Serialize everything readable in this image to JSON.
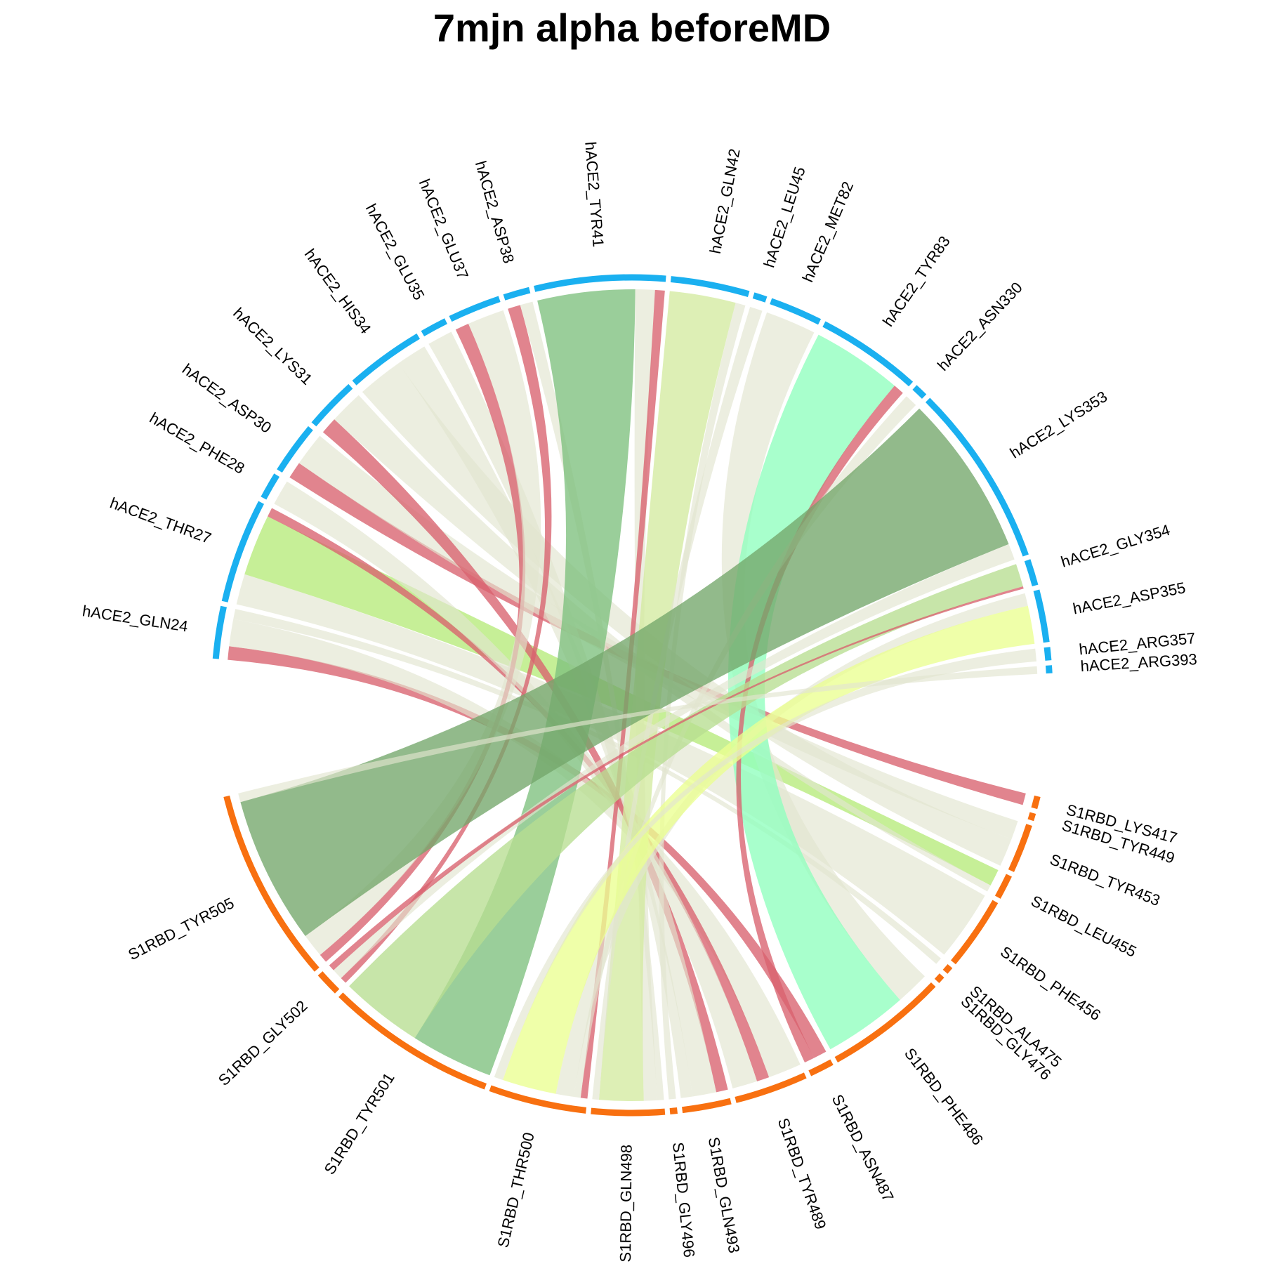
{
  "title": "7mjn alpha beforeMD",
  "colors": {
    "group_hACE2": "#1AB0F0",
    "group_S1RBD": "#F87010",
    "ribbon_default": "#E2E5D0",
    "ribbon_red": "#D9626E"
  },
  "sectors": [
    {
      "name": "hACE2_GLN24",
      "group": "hACE2",
      "value": 2
    },
    {
      "name": "hACE2_THR27",
      "group": "hACE2",
      "value": 4
    },
    {
      "name": "hACE2_PHE28",
      "group": "hACE2",
      "value": 1
    },
    {
      "name": "hACE2_ASP30",
      "group": "hACE2",
      "value": 2
    },
    {
      "name": "hACE2_LYS31",
      "group": "hACE2",
      "value": 2
    },
    {
      "name": "hACE2_HIS34",
      "group": "hACE2",
      "value": 3
    },
    {
      "name": "hACE2_GLU35",
      "group": "hACE2",
      "value": 1
    },
    {
      "name": "hACE2_GLU37",
      "group": "hACE2",
      "value": 2
    },
    {
      "name": "hACE2_ASP38",
      "group": "hACE2",
      "value": 1
    },
    {
      "name": "hACE2_TYR41",
      "group": "hACE2",
      "value": 5
    },
    {
      "name": "hACE2_GLN42",
      "group": "hACE2",
      "value": 3
    },
    {
      "name": "hACE2_LEU45",
      "group": "hACE2",
      "value": 0.5
    },
    {
      "name": "hACE2_MET82",
      "group": "hACE2",
      "value": 2
    },
    {
      "name": "hACE2_TYR83",
      "group": "hACE2",
      "value": 4
    },
    {
      "name": "hACE2_ASN330",
      "group": "hACE2",
      "value": 0.5
    },
    {
      "name": "hACE2_LYS353",
      "group": "hACE2",
      "value": 7
    },
    {
      "name": "hACE2_GLY354",
      "group": "hACE2",
      "value": 1
    },
    {
      "name": "hACE2_ASP355",
      "group": "hACE2",
      "value": 2
    },
    {
      "name": "hACE2_ARG357",
      "group": "hACE2",
      "value": 0.5
    },
    {
      "name": "hACE2_ARG393",
      "group": "hACE2",
      "value": 0.3
    },
    {
      "name": "S1RBD_LYS417",
      "group": "S1RBD",
      "value": 0.5
    },
    {
      "name": "S1RBD_TYR449",
      "group": "S1RBD",
      "value": 0.3
    },
    {
      "name": "S1RBD_TYR453",
      "group": "S1RBD",
      "value": 2
    },
    {
      "name": "S1RBD_LEU455",
      "group": "S1RBD",
      "value": 1
    },
    {
      "name": "S1RBD_PHE456",
      "group": "S1RBD",
      "value": 3
    },
    {
      "name": "S1RBD_ALA475",
      "group": "S1RBD",
      "value": 0.3
    },
    {
      "name": "S1RBD_GLY476",
      "group": "S1RBD",
      "value": 0.3
    },
    {
      "name": "S1RBD_PHE486",
      "group": "S1RBD",
      "value": 5
    },
    {
      "name": "S1RBD_ASN487",
      "group": "S1RBD",
      "value": 1
    },
    {
      "name": "S1RBD_TYR489",
      "group": "S1RBD",
      "value": 3
    },
    {
      "name": "S1RBD_GLN493",
      "group": "S1RBD",
      "value": 2
    },
    {
      "name": "S1RBD_GLY496",
      "group": "S1RBD",
      "value": 0.3
    },
    {
      "name": "S1RBD_GLN498",
      "group": "S1RBD",
      "value": 3
    },
    {
      "name": "S1RBD_THR500",
      "group": "S1RBD",
      "value": 4
    },
    {
      "name": "S1RBD_TYR501",
      "group": "S1RBD",
      "value": 7
    },
    {
      "name": "S1RBD_GLY502",
      "group": "S1RBD",
      "value": 1
    },
    {
      "name": "S1RBD_TYR505",
      "group": "S1RBD",
      "value": 8
    }
  ],
  "links": [
    {
      "from": "hACE2_GLN24",
      "to": "S1RBD_ASN487",
      "value": 0.4,
      "color": "#D9626E"
    },
    {
      "from": "hACE2_GLN24",
      "to": "S1RBD_TYR489",
      "value": 0.8,
      "color": "#E2E5D0"
    },
    {
      "from": "hACE2_GLN24",
      "to": "S1RBD_ALA475",
      "value": 0.3,
      "color": "#E2E5D0"
    },
    {
      "from": "hACE2_THR27",
      "to": "S1RBD_PHE456",
      "value": 1.0,
      "color": "#E2E5D0"
    },
    {
      "from": "hACE2_THR27",
      "to": "S1RBD_LEU455",
      "value": 2.0,
      "color": "#B6EB7A"
    },
    {
      "from": "hACE2_THR27",
      "to": "S1RBD_TYR489",
      "value": 0.3,
      "color": "#D9626E"
    },
    {
      "from": "hACE2_PHE28",
      "to": "S1RBD_TYR489",
      "value": 0.6,
      "color": "#E2E5D0"
    },
    {
      "from": "hACE2_ASP30",
      "to": "S1RBD_LYS417",
      "value": 0.4,
      "color": "#D9626E"
    },
    {
      "from": "hACE2_ASP30",
      "to": "S1RBD_TYR453",
      "value": 0.8,
      "color": "#E2E5D0"
    },
    {
      "from": "hACE2_LYS31",
      "to": "S1RBD_GLN493",
      "value": 0.4,
      "color": "#D9626E"
    },
    {
      "from": "hACE2_LYS31",
      "to": "S1RBD_LEU455",
      "value": 0.8,
      "color": "#E2E5D0"
    },
    {
      "from": "hACE2_HIS34",
      "to": "S1RBD_TYR453",
      "value": 1.2,
      "color": "#E2E5D0"
    },
    {
      "from": "hACE2_HIS34",
      "to": "S1RBD_GLN493",
      "value": 0.8,
      "color": "#E2E5D0"
    },
    {
      "from": "hACE2_GLU35",
      "to": "S1RBD_GLN493",
      "value": 0.4,
      "color": "#E2E5D0"
    },
    {
      "from": "hACE2_GLU37",
      "to": "S1RBD_TYR505",
      "value": 0.3,
      "color": "#D9626E"
    },
    {
      "from": "hACE2_GLU37",
      "to": "S1RBD_TYR505",
      "value": 0.8,
      "color": "#E2E5D0"
    },
    {
      "from": "hACE2_ASP38",
      "to": "S1RBD_GLY502",
      "value": 0.3,
      "color": "#D9626E"
    },
    {
      "from": "hACE2_ASP38",
      "to": "S1RBD_GLN498",
      "value": 0.3,
      "color": "#E2E5D0"
    },
    {
      "from": "hACE2_TYR41",
      "to": "S1RBD_TYR501",
      "value": 3.0,
      "color": "#7DC07D"
    },
    {
      "from": "hACE2_TYR41",
      "to": "S1RBD_GLN498",
      "value": 0.6,
      "color": "#E2E5D0"
    },
    {
      "from": "hACE2_TYR41",
      "to": "S1RBD_THR500",
      "value": 0.3,
      "color": "#D9626E"
    },
    {
      "from": "hACE2_GLN42",
      "to": "S1RBD_GLN498",
      "value": 2.0,
      "color": "#D3EBA0"
    },
    {
      "from": "hACE2_GLN42",
      "to": "S1RBD_GLY496",
      "value": 0.3,
      "color": "#E2E5D0"
    },
    {
      "from": "hACE2_LEU45",
      "to": "S1RBD_GLN498",
      "value": 0.3,
      "color": "#E2E5D0"
    },
    {
      "from": "hACE2_MET82",
      "to": "S1RBD_PHE486",
      "value": 1.0,
      "color": "#E2E5D0"
    },
    {
      "from": "hACE2_TYR83",
      "to": "S1RBD_PHE486",
      "value": 2.5,
      "color": "#8FFFBE"
    },
    {
      "from": "hACE2_TYR83",
      "to": "S1RBD_ASN487",
      "value": 0.3,
      "color": "#D9626E"
    },
    {
      "from": "hACE2_ASN330",
      "to": "S1RBD_THR500",
      "value": 0.3,
      "color": "#E2E5D0"
    },
    {
      "from": "hACE2_LYS353",
      "to": "S1RBD_TYR505",
      "value": 5.0,
      "color": "#73A66A"
    },
    {
      "from": "hACE2_LYS353",
      "to": "S1RBD_GLY502",
      "value": 0.5,
      "color": "#E2E5D0"
    },
    {
      "from": "hACE2_GLY354",
      "to": "S1RBD_TYR501",
      "value": 3.0,
      "color": "#B7DE91"
    },
    {
      "from": "hACE2_GLY354",
      "to": "S1RBD_GLY502",
      "value": 0.3,
      "color": "#D9626E"
    },
    {
      "from": "hACE2_ASP355",
      "to": "S1RBD_THR500",
      "value": 0.8,
      "color": "#E2E5D0"
    },
    {
      "from": "hACE2_ASP355",
      "to": "S1RBD_THR500",
      "value": 2.4,
      "color": "#EBFF91"
    },
    {
      "from": "hACE2_ARG357",
      "to": "S1RBD_THR500",
      "value": 0.4,
      "color": "#E2E5D0"
    },
    {
      "from": "hACE2_ARG393",
      "to": "S1RBD_TYR505",
      "value": 0.3,
      "color": "#E2E5D0"
    }
  ]
}
